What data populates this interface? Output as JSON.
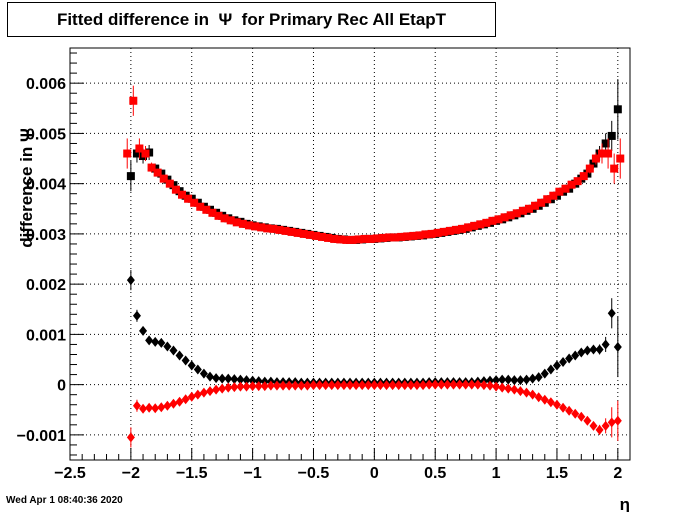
{
  "chart_data": {
    "type": "scatter",
    "title": "Fitted difference in  Ψ  for Primary Rec All EtapT",
    "xlabel": "η",
    "ylabel": "difference in Ψ",
    "xlim": [
      -2.5,
      2.1
    ],
    "ylim": [
      -0.0015,
      0.0067
    ],
    "grid": true,
    "x_ticks": [
      {
        "v": -2.5,
        "label": "−2.5"
      },
      {
        "v": -2,
        "label": "−2"
      },
      {
        "v": -1.5,
        "label": "−1.5"
      },
      {
        "v": -1,
        "label": "−1"
      },
      {
        "v": -0.5,
        "label": "−0.5"
      },
      {
        "v": 0,
        "label": "0"
      },
      {
        "v": 0.5,
        "label": "0.5"
      },
      {
        "v": 1,
        "label": "1"
      },
      {
        "v": 1.5,
        "label": "1.5"
      },
      {
        "v": 2,
        "label": "2"
      }
    ],
    "y_ticks": [
      {
        "v": -0.001,
        "label": "−0.001"
      },
      {
        "v": 0,
        "label": "0"
      },
      {
        "v": 0.001,
        "label": "0.001"
      },
      {
        "v": 0.002,
        "label": "0.002"
      },
      {
        "v": 0.003,
        "label": "0.003"
      },
      {
        "v": 0.004,
        "label": "0.004"
      },
      {
        "v": 0.005,
        "label": "0.005"
      },
      {
        "v": 0.006,
        "label": "0.006"
      }
    ],
    "series": [
      {
        "marker": "square",
        "color": "#000000",
        "x": [
          -2.0,
          -1.95,
          -1.9,
          -1.85,
          -1.8,
          -1.75,
          -1.7,
          -1.65,
          -1.6,
          -1.55,
          -1.5,
          -1.45,
          -1.4,
          -1.35,
          -1.3,
          -1.25,
          -1.2,
          -1.15,
          -1.1,
          -1.05,
          -1.0,
          -0.95,
          -0.9,
          -0.85,
          -0.8,
          -0.75,
          -0.7,
          -0.65,
          -0.6,
          -0.55,
          -0.5,
          -0.45,
          -0.4,
          -0.35,
          -0.3,
          -0.25,
          -0.2,
          -0.15,
          -0.1,
          -0.05,
          0.0,
          0.05,
          0.1,
          0.15,
          0.2,
          0.25,
          0.3,
          0.35,
          0.4,
          0.45,
          0.5,
          0.55,
          0.6,
          0.65,
          0.7,
          0.75,
          0.8,
          0.85,
          0.9,
          0.95,
          1.0,
          1.05,
          1.1,
          1.15,
          1.2,
          1.25,
          1.3,
          1.35,
          1.4,
          1.45,
          1.5,
          1.55,
          1.6,
          1.65,
          1.7,
          1.75,
          1.8,
          1.85,
          1.9,
          1.95,
          2.0
        ],
        "y": [
          0.00415,
          0.0046,
          0.00455,
          0.00462,
          0.0043,
          0.0042,
          0.00408,
          0.00397,
          0.00385,
          0.00376,
          0.0037,
          0.00362,
          0.00354,
          0.00348,
          0.00342,
          0.00336,
          0.00331,
          0.00327,
          0.00324,
          0.0032,
          0.00317,
          0.00315,
          0.00313,
          0.00311,
          0.0031,
          0.00308,
          0.00306,
          0.00304,
          0.00302,
          0.003,
          0.00298,
          0.00296,
          0.00294,
          0.00292,
          0.0029,
          0.00289,
          0.00288,
          0.00288,
          0.00289,
          0.0029,
          0.0029,
          0.00291,
          0.00292,
          0.00293,
          0.00293,
          0.00294,
          0.00295,
          0.00296,
          0.00297,
          0.00299,
          0.003,
          0.00302,
          0.00304,
          0.00306,
          0.00308,
          0.0031,
          0.00313,
          0.00316,
          0.00319,
          0.00322,
          0.00326,
          0.00329,
          0.00333,
          0.00337,
          0.00341,
          0.00346,
          0.0035,
          0.00356,
          0.00362,
          0.00369,
          0.00376,
          0.00384,
          0.0039,
          0.004,
          0.0041,
          0.0042,
          0.0044,
          0.0046,
          0.0048,
          0.00495,
          0.00548
        ],
        "err": [
          0.0003,
          0.00018,
          0.00015,
          0.00015,
          0.0001,
          6e-05,
          5e-05,
          4e-05,
          4e-05,
          4e-05,
          3e-05,
          3e-05,
          3e-05,
          3e-05,
          3e-05,
          3e-05,
          3e-05,
          3e-05,
          3e-05,
          3e-05,
          3e-05,
          3e-05,
          3e-05,
          3e-05,
          3e-05,
          3e-05,
          3e-05,
          3e-05,
          3e-05,
          3e-05,
          3e-05,
          3e-05,
          3e-05,
          3e-05,
          3e-05,
          3e-05,
          3e-05,
          3e-05,
          3e-05,
          3e-05,
          3e-05,
          3e-05,
          3e-05,
          3e-05,
          3e-05,
          3e-05,
          3e-05,
          3e-05,
          3e-05,
          3e-05,
          3e-05,
          3e-05,
          3e-05,
          3e-05,
          3e-05,
          3e-05,
          3e-05,
          3e-05,
          3e-05,
          3e-05,
          3e-05,
          3e-05,
          3e-05,
          3e-05,
          3e-05,
          3e-05,
          3e-05,
          3e-05,
          3e-05,
          3e-05,
          4e-05,
          4e-05,
          4e-05,
          5e-05,
          6e-05,
          8e-05,
          0.0001,
          0.00015,
          0.0002,
          0.0003,
          0.0006
        ]
      },
      {
        "marker": "square",
        "color": "#ff0000",
        "x": [
          -2.03,
          -1.98,
          -1.93,
          -1.88,
          -1.83,
          -1.78,
          -1.73,
          -1.68,
          -1.63,
          -1.58,
          -1.53,
          -1.48,
          -1.43,
          -1.38,
          -1.33,
          -1.28,
          -1.23,
          -1.18,
          -1.13,
          -1.08,
          -1.03,
          -0.98,
          -0.93,
          -0.88,
          -0.83,
          -0.78,
          -0.73,
          -0.68,
          -0.63,
          -0.58,
          -0.53,
          -0.48,
          -0.43,
          -0.38,
          -0.33,
          -0.28,
          -0.23,
          -0.18,
          -0.13,
          -0.08,
          -0.03,
          0.02,
          0.07,
          0.12,
          0.17,
          0.22,
          0.27,
          0.32,
          0.37,
          0.42,
          0.47,
          0.52,
          0.57,
          0.62,
          0.67,
          0.72,
          0.77,
          0.82,
          0.87,
          0.92,
          0.97,
          1.02,
          1.07,
          1.12,
          1.17,
          1.22,
          1.27,
          1.32,
          1.37,
          1.42,
          1.47,
          1.52,
          1.57,
          1.62,
          1.67,
          1.72,
          1.77,
          1.82,
          1.87,
          1.92,
          1.97,
          2.02
        ],
        "y": [
          0.0046,
          0.00565,
          0.0047,
          0.0046,
          0.00432,
          0.00422,
          0.0041,
          0.004,
          0.00388,
          0.00378,
          0.0037,
          0.00362,
          0.00354,
          0.00348,
          0.00342,
          0.00336,
          0.00331,
          0.00327,
          0.00323,
          0.0032,
          0.00317,
          0.00315,
          0.00313,
          0.00311,
          0.0031,
          0.00308,
          0.00306,
          0.00304,
          0.00302,
          0.003,
          0.00298,
          0.00296,
          0.00294,
          0.00292,
          0.0029,
          0.00289,
          0.00288,
          0.00288,
          0.00289,
          0.0029,
          0.0029,
          0.00291,
          0.00292,
          0.00293,
          0.00293,
          0.00294,
          0.00295,
          0.00296,
          0.00297,
          0.00299,
          0.003,
          0.00302,
          0.00304,
          0.00306,
          0.00308,
          0.0031,
          0.00313,
          0.00316,
          0.00319,
          0.00322,
          0.00326,
          0.00329,
          0.00333,
          0.00337,
          0.00341,
          0.00346,
          0.0035,
          0.00356,
          0.00362,
          0.00369,
          0.00376,
          0.00384,
          0.0039,
          0.00398,
          0.00405,
          0.00415,
          0.0043,
          0.0045,
          0.0046,
          0.0046,
          0.0043,
          0.0045
        ],
        "err": [
          0.0003,
          0.0003,
          0.0002,
          0.00015,
          0.0001,
          6e-05,
          5e-05,
          4e-05,
          4e-05,
          4e-05,
          3e-05,
          3e-05,
          3e-05,
          3e-05,
          3e-05,
          3e-05,
          3e-05,
          3e-05,
          3e-05,
          3e-05,
          3e-05,
          3e-05,
          3e-05,
          3e-05,
          3e-05,
          3e-05,
          3e-05,
          3e-05,
          3e-05,
          3e-05,
          3e-05,
          3e-05,
          3e-05,
          3e-05,
          3e-05,
          3e-05,
          3e-05,
          3e-05,
          3e-05,
          3e-05,
          3e-05,
          3e-05,
          3e-05,
          3e-05,
          3e-05,
          3e-05,
          3e-05,
          3e-05,
          3e-05,
          3e-05,
          3e-05,
          3e-05,
          3e-05,
          3e-05,
          3e-05,
          3e-05,
          3e-05,
          3e-05,
          3e-05,
          3e-05,
          3e-05,
          3e-05,
          3e-05,
          3e-05,
          3e-05,
          3e-05,
          3e-05,
          3e-05,
          3e-05,
          3e-05,
          4e-05,
          4e-05,
          4e-05,
          5e-05,
          6e-05,
          8e-05,
          0.0001,
          0.00012,
          0.0002,
          0.0003,
          0.0003,
          0.0004
        ]
      },
      {
        "marker": "diamond",
        "color": "#000000",
        "x": [
          -2.0,
          -1.95,
          -1.9,
          -1.85,
          -1.8,
          -1.75,
          -1.7,
          -1.65,
          -1.6,
          -1.55,
          -1.5,
          -1.45,
          -1.4,
          -1.35,
          -1.3,
          -1.25,
          -1.2,
          -1.15,
          -1.1,
          -1.05,
          -1.0,
          -0.95,
          -0.9,
          -0.85,
          -0.8,
          -0.75,
          -0.7,
          -0.65,
          -0.6,
          -0.55,
          -0.5,
          -0.45,
          -0.4,
          -0.35,
          -0.3,
          -0.25,
          -0.2,
          -0.15,
          -0.1,
          -0.05,
          0.0,
          0.05,
          0.1,
          0.15,
          0.2,
          0.25,
          0.3,
          0.35,
          0.4,
          0.45,
          0.5,
          0.55,
          0.6,
          0.65,
          0.7,
          0.75,
          0.8,
          0.85,
          0.9,
          0.95,
          1.0,
          1.05,
          1.1,
          1.15,
          1.2,
          1.25,
          1.3,
          1.35,
          1.4,
          1.45,
          1.5,
          1.55,
          1.6,
          1.65,
          1.7,
          1.75,
          1.8,
          1.85,
          1.9,
          1.95,
          2.0
        ],
        "y": [
          0.00208,
          0.00137,
          0.00107,
          0.00088,
          0.00085,
          0.00083,
          0.00076,
          0.00068,
          0.00058,
          0.00048,
          0.00038,
          0.0003,
          0.00022,
          0.00016,
          0.00013,
          0.00012,
          0.00012,
          0.00011,
          0.0001,
          9e-05,
          8e-05,
          7e-05,
          6e-05,
          6e-05,
          5e-05,
          5e-05,
          5e-05,
          5e-05,
          4e-05,
          4e-05,
          4e-05,
          4e-05,
          4e-05,
          4e-05,
          4e-05,
          4e-05,
          4e-05,
          4e-05,
          4e-05,
          4e-05,
          4e-05,
          4e-05,
          4e-05,
          4e-05,
          4e-05,
          4e-05,
          4e-05,
          4e-05,
          4e-05,
          5e-05,
          5e-05,
          5e-05,
          5e-05,
          5e-05,
          5e-05,
          5e-05,
          5e-05,
          6e-05,
          7e-05,
          8e-05,
          9e-05,
          0.0001,
          0.0001,
          9e-05,
          9e-05,
          0.0001,
          0.00012,
          0.00015,
          0.00022,
          0.0003,
          0.00038,
          0.00045,
          0.00052,
          0.00058,
          0.00064,
          0.00068,
          0.0007,
          0.0007,
          0.0008,
          0.00142,
          0.00075
        ],
        "err": [
          0.0002,
          0.00012,
          8e-05,
          6e-05,
          5e-05,
          4e-05,
          3e-05,
          3e-05,
          3e-05,
          3e-05,
          3e-05,
          3e-05,
          3e-05,
          3e-05,
          3e-05,
          3e-05,
          3e-05,
          3e-05,
          3e-05,
          3e-05,
          3e-05,
          3e-05,
          3e-05,
          3e-05,
          3e-05,
          3e-05,
          3e-05,
          3e-05,
          3e-05,
          3e-05,
          3e-05,
          3e-05,
          3e-05,
          3e-05,
          3e-05,
          3e-05,
          3e-05,
          3e-05,
          3e-05,
          3e-05,
          3e-05,
          3e-05,
          3e-05,
          3e-05,
          3e-05,
          3e-05,
          3e-05,
          3e-05,
          3e-05,
          3e-05,
          3e-05,
          3e-05,
          3e-05,
          3e-05,
          3e-05,
          3e-05,
          3e-05,
          3e-05,
          3e-05,
          3e-05,
          3e-05,
          3e-05,
          3e-05,
          3e-05,
          3e-05,
          3e-05,
          3e-05,
          3e-05,
          3e-05,
          3e-05,
          3e-05,
          3e-05,
          3e-05,
          4e-05,
          5e-05,
          6e-05,
          8e-05,
          0.0001,
          0.00015,
          0.0003,
          0.0006
        ]
      },
      {
        "marker": "diamond",
        "color": "#ff0000",
        "x": [
          -2.0,
          -1.95,
          -1.9,
          -1.85,
          -1.8,
          -1.75,
          -1.7,
          -1.65,
          -1.6,
          -1.55,
          -1.5,
          -1.45,
          -1.4,
          -1.35,
          -1.3,
          -1.25,
          -1.2,
          -1.15,
          -1.1,
          -1.05,
          -1.0,
          -0.95,
          -0.9,
          -0.85,
          -0.8,
          -0.75,
          -0.7,
          -0.65,
          -0.6,
          -0.55,
          -0.5,
          -0.45,
          -0.4,
          -0.35,
          -0.3,
          -0.25,
          -0.2,
          -0.15,
          -0.1,
          -0.05,
          0.0,
          0.05,
          0.1,
          0.15,
          0.2,
          0.25,
          0.3,
          0.35,
          0.4,
          0.45,
          0.5,
          0.55,
          0.6,
          0.65,
          0.7,
          0.75,
          0.8,
          0.85,
          0.9,
          0.95,
          1.0,
          1.05,
          1.1,
          1.15,
          1.2,
          1.25,
          1.3,
          1.35,
          1.4,
          1.45,
          1.5,
          1.55,
          1.6,
          1.65,
          1.7,
          1.75,
          1.8,
          1.85,
          1.9,
          1.95,
          2.0
        ],
        "y": [
          -0.00105,
          -0.00042,
          -0.00048,
          -0.00046,
          -0.00047,
          -0.00045,
          -0.00042,
          -0.00038,
          -0.00034,
          -0.00029,
          -0.00024,
          -0.0002,
          -0.00016,
          -0.00013,
          -0.0001,
          -8e-05,
          -6e-05,
          -5e-05,
          -4e-05,
          -4e-05,
          -3e-05,
          -3e-05,
          -3e-05,
          -2e-05,
          -2e-05,
          -2e-05,
          -2e-05,
          -2e-05,
          -2e-05,
          -2e-05,
          -1e-05,
          -1e-05,
          -1e-05,
          -1e-05,
          -1e-05,
          -1e-05,
          -1e-05,
          -1e-05,
          -1e-05,
          -1e-05,
          -1e-05,
          -1e-05,
          -1e-05,
          -1e-05,
          -1e-05,
          -1e-05,
          -1e-05,
          -1e-05,
          -1e-05,
          0.0,
          0.0,
          0.0,
          0.0,
          0.0,
          0.0,
          0.0,
          0.0,
          0.0,
          -1e-05,
          -2e-05,
          -4e-05,
          -6e-05,
          -8e-05,
          -0.0001,
          -0.00013,
          -0.00016,
          -0.0002,
          -0.00025,
          -0.0003,
          -0.00035,
          -0.0004,
          -0.00046,
          -0.00052,
          -0.00058,
          -0.00064,
          -0.00072,
          -0.00082,
          -0.0009,
          -0.00082,
          -0.00075,
          -0.00072
        ],
        "err": [
          0.0002,
          0.00012,
          8e-05,
          6e-05,
          5e-05,
          4e-05,
          3e-05,
          3e-05,
          3e-05,
          3e-05,
          3e-05,
          3e-05,
          3e-05,
          3e-05,
          3e-05,
          3e-05,
          3e-05,
          3e-05,
          3e-05,
          3e-05,
          3e-05,
          3e-05,
          3e-05,
          3e-05,
          3e-05,
          3e-05,
          3e-05,
          3e-05,
          3e-05,
          3e-05,
          3e-05,
          3e-05,
          3e-05,
          3e-05,
          3e-05,
          3e-05,
          3e-05,
          3e-05,
          3e-05,
          3e-05,
          3e-05,
          3e-05,
          3e-05,
          3e-05,
          3e-05,
          3e-05,
          3e-05,
          3e-05,
          3e-05,
          3e-05,
          3e-05,
          3e-05,
          3e-05,
          3e-05,
          3e-05,
          3e-05,
          3e-05,
          3e-05,
          3e-05,
          3e-05,
          3e-05,
          3e-05,
          3e-05,
          3e-05,
          3e-05,
          3e-05,
          3e-05,
          3e-05,
          3e-05,
          3e-05,
          3e-05,
          3e-05,
          3e-05,
          4e-05,
          5e-05,
          6e-05,
          8e-05,
          0.0001,
          0.00015,
          0.0003,
          0.0004
        ]
      }
    ]
  },
  "footer": {
    "timestamp": "Wed Apr  1 08:40:36 2020"
  }
}
